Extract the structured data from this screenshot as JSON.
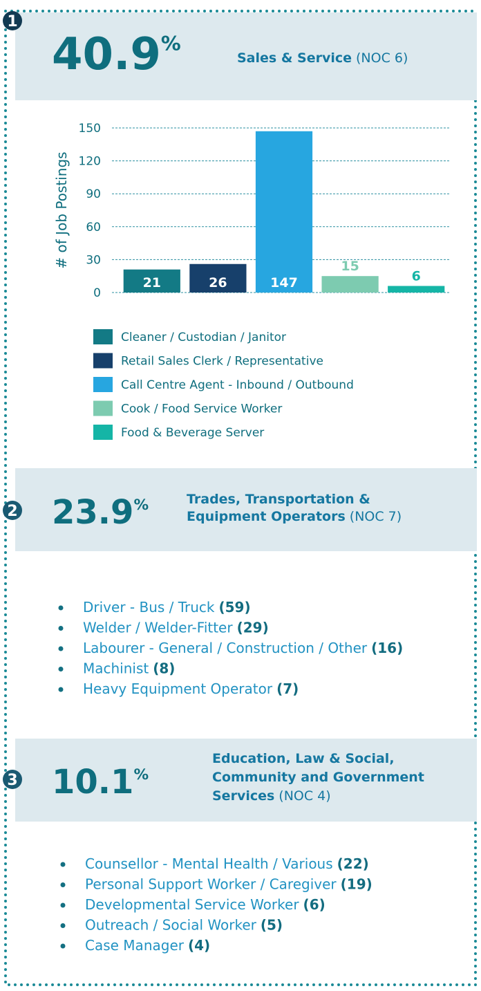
{
  "sections": [
    {
      "number": "1",
      "percent": "40.9",
      "percent_sign": "%",
      "title_lines": [
        "Sales & Service"
      ],
      "code": "(NOC 6)"
    },
    {
      "number": "2",
      "percent": "23.9",
      "percent_sign": "%",
      "title_lines": [
        "Trades, Transportation &",
        "Equipment Operators"
      ],
      "code": "(NOC 7)",
      "items": [
        {
          "label": "Driver - Bus / Truck",
          "count": "(59)"
        },
        {
          "label": "Welder / Welder-Fitter",
          "count": "(29)"
        },
        {
          "label": "Labourer - General / Construction / Other",
          "count": "(16)"
        },
        {
          "label": "Machinist",
          "count": "(8)"
        },
        {
          "label": "Heavy Equipment Operator",
          "count": "(7)"
        }
      ]
    },
    {
      "number": "3",
      "percent": "10.1",
      "percent_sign": "%",
      "title_lines": [
        "Education, Law & Social,",
        "Community and Government",
        "Services"
      ],
      "code": "(NOC 4)",
      "items": [
        {
          "label": "Counsellor - Mental Health / Various",
          "count": "(22)"
        },
        {
          "label": "Personal Support Worker / Caregiver",
          "count": "(19)"
        },
        {
          "label": "Developmental Service Worker",
          "count": "(6)"
        },
        {
          "label": "Outreach / Social Worker",
          "count": "(5)"
        },
        {
          "label": "Case Manager",
          "count": "(4)"
        }
      ]
    }
  ],
  "chart_data": {
    "type": "bar",
    "ylabel": "# of Job Postings",
    "categories": [
      "Cleaner / Custodian / Janitor",
      "Retail Sales Clerk / Representative",
      "Call Centre Agent - Inbound / Outbound",
      "Cook / Food Service Worker",
      "Food & Beverage Server"
    ],
    "values": [
      21,
      26,
      147,
      15,
      6
    ],
    "colors": [
      "#137a85",
      "#17406b",
      "#27a6e0",
      "#7dcbb0",
      "#15b5a6"
    ],
    "ylim": [
      0,
      150
    ],
    "yticks": [
      0,
      30,
      60,
      90,
      120,
      150
    ],
    "grid": true
  }
}
